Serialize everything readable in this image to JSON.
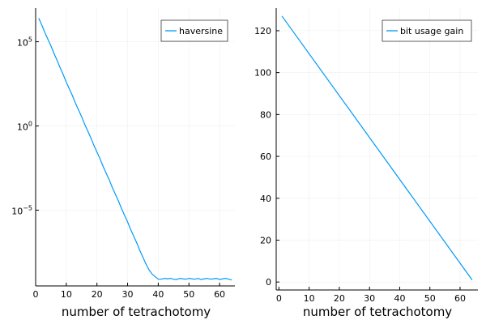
{
  "chart_data": [
    {
      "type": "line",
      "yscale": "log10",
      "xlabel": "number of tetrachotomy",
      "ylabel": "",
      "xlim": [
        0,
        65
      ],
      "ylim_log10": [
        -9.5,
        7
      ],
      "xticks": [
        0,
        10,
        20,
        30,
        40,
        50,
        60
      ],
      "xtick_labels": [
        "0",
        "10",
        "20",
        "30",
        "40",
        "50",
        "60"
      ],
      "yticks_log10": [
        5,
        0,
        -5
      ],
      "ytick_labels": [
        {
          "base": "10",
          "exp": "5"
        },
        {
          "base": "10",
          "exp": "0"
        },
        {
          "base": "10",
          "exp": "−5"
        }
      ],
      "grid": true,
      "legend_position": "top-right",
      "series": [
        {
          "name": "haversine",
          "color": "#009af9",
          "x": [
            1,
            2,
            3,
            4,
            5,
            6,
            7,
            8,
            9,
            10,
            11,
            12,
            13,
            14,
            15,
            16,
            17,
            18,
            19,
            20,
            21,
            22,
            23,
            24,
            25,
            26,
            27,
            28,
            29,
            30,
            31,
            32,
            33,
            34,
            35,
            36,
            37,
            38,
            39,
            40,
            41,
            42,
            43,
            44,
            45,
            46,
            47,
            48,
            49,
            50,
            51,
            52,
            53,
            54,
            55,
            56,
            57,
            58,
            59,
            60,
            61,
            62,
            63,
            64
          ],
          "log10_y": [
            6.4,
            6.0,
            5.55,
            5.15,
            4.75,
            4.3,
            3.9,
            3.45,
            3.05,
            2.6,
            2.2,
            1.8,
            1.35,
            0.95,
            0.55,
            0.1,
            -0.3,
            -0.7,
            -1.15,
            -1.55,
            -1.95,
            -2.4,
            -2.8,
            -3.2,
            -3.65,
            -4.05,
            -4.45,
            -4.9,
            -5.3,
            -5.7,
            -6.15,
            -6.55,
            -6.95,
            -7.4,
            -7.8,
            -8.2,
            -8.55,
            -8.8,
            -8.95,
            -9.1,
            -9.1,
            -9.05,
            -9.08,
            -9.05,
            -9.1,
            -9.12,
            -9.05,
            -9.08,
            -9.1,
            -9.05,
            -9.08,
            -9.1,
            -9.05,
            -9.12,
            -9.08,
            -9.05,
            -9.1,
            -9.08,
            -9.05,
            -9.12,
            -9.08,
            -9.05,
            -9.1,
            -9.15
          ]
        }
      ]
    },
    {
      "type": "line",
      "yscale": "linear",
      "xlabel": "number of tetrachotomy",
      "ylabel": "",
      "xlim": [
        -0.9,
        65.9
      ],
      "ylim": [
        -3.8,
        130.8
      ],
      "xticks": [
        0,
        10,
        20,
        30,
        40,
        50,
        60
      ],
      "xtick_labels": [
        "0",
        "10",
        "20",
        "30",
        "40",
        "50",
        "60"
      ],
      "yticks": [
        0,
        20,
        40,
        60,
        80,
        100,
        120
      ],
      "ytick_labels": [
        "0",
        "20",
        "40",
        "60",
        "80",
        "100",
        "120"
      ],
      "grid": true,
      "legend_position": "top-right",
      "series": [
        {
          "name": "bit usage gain",
          "color": "#009af9",
          "x": [
            1,
            64
          ],
          "y": [
            127,
            1
          ]
        }
      ]
    }
  ]
}
